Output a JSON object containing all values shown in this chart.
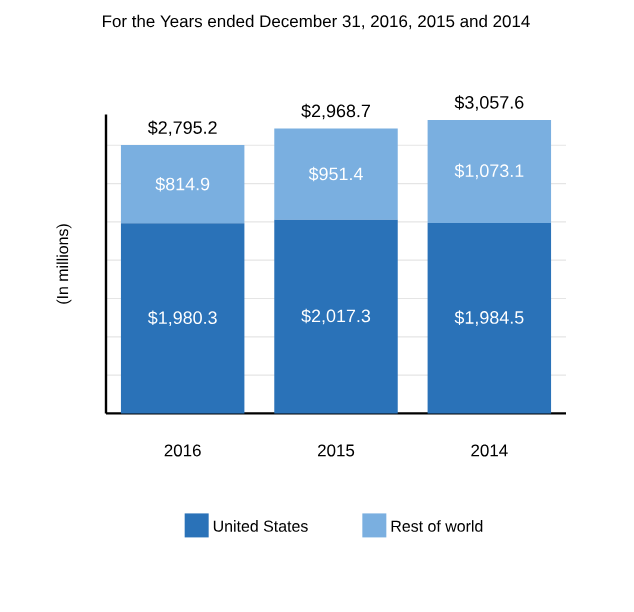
{
  "chart_data": {
    "type": "bar",
    "stacked": true,
    "title": "For the Years ended December 31, 2016, 2015 and 2014",
    "ylabel": "(In millions)",
    "categories": [
      "2016",
      "2015",
      "2014"
    ],
    "series": [
      {
        "name": "United States",
        "color": "#2a72b8",
        "values": [
          1980.3,
          2017.3,
          1984.5
        ],
        "value_labels": [
          "$1,980.3",
          "$2,017.3",
          "$1,984.5"
        ]
      },
      {
        "name": "Rest of world",
        "color": "#7aafe0",
        "values": [
          814.9,
          951.4,
          1073.1
        ],
        "value_labels": [
          "$814.9",
          "$951.4",
          "$1,073.1"
        ]
      }
    ],
    "totals": [
      "$2,795.2",
      "$2,968.7",
      "$3,057.6"
    ],
    "grid": "y",
    "tick_labels": "x",
    "legend": "bottom"
  }
}
